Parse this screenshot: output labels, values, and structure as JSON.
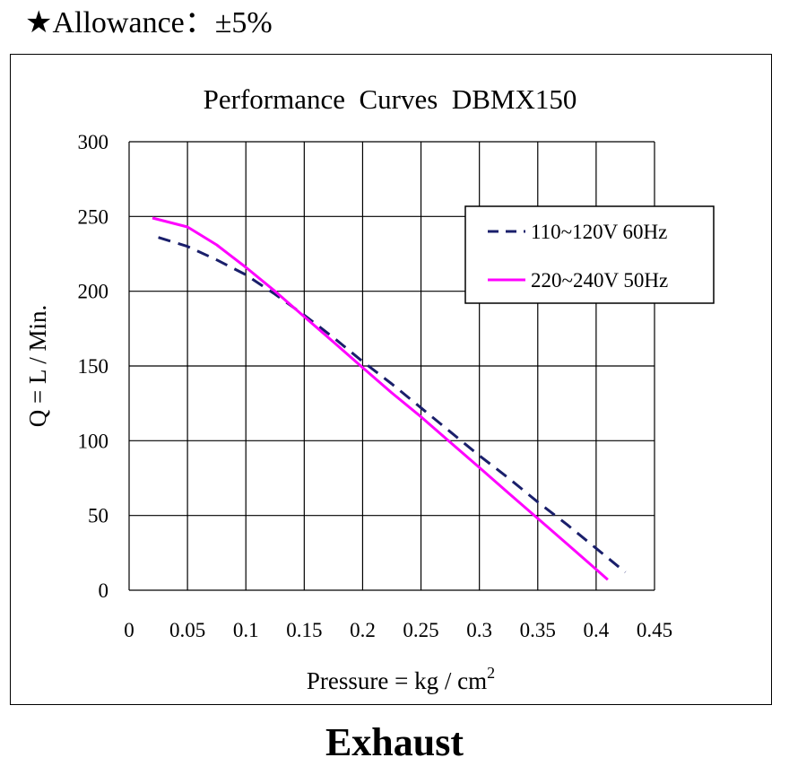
{
  "header": {
    "star": "★",
    "allowance_label": "Allowance：±5%"
  },
  "footer": {
    "title": "Exhaust"
  },
  "colors": {
    "series_60hz": "#1a1f6b",
    "series_50hz": "#ff00ff",
    "grid": "#000000"
  },
  "chart_data": {
    "type": "line",
    "title": "Performance  Curves  DBMX150",
    "xlabel": "Pressure = kg / cm",
    "xlabel_sup": "2",
    "ylabel": "Q = L / Min.",
    "xlim": [
      0,
      0.45
    ],
    "ylim": [
      0,
      300
    ],
    "x_ticks": [
      0,
      0.05,
      0.1,
      0.15,
      0.2,
      0.25,
      0.3,
      0.35,
      0.4,
      0.45
    ],
    "x_tick_labels": [
      "0",
      "0.05",
      "0.1",
      "0.15",
      "0.2",
      "0.25",
      "0.3",
      "0.35",
      "0.4",
      "0.45"
    ],
    "y_ticks": [
      0,
      50,
      100,
      150,
      200,
      250,
      300
    ],
    "y_tick_labels": [
      "0",
      "50",
      "100",
      "150",
      "200",
      "250",
      "300"
    ],
    "grid": true,
    "legend_position": "top-right",
    "series": [
      {
        "name": "110~120V 60Hz",
        "style": "dashed",
        "color": "#1a1f6b",
        "x": [
          0.025,
          0.05,
          0.075,
          0.1,
          0.125,
          0.15,
          0.175,
          0.2,
          0.225,
          0.25,
          0.275,
          0.3,
          0.325,
          0.35,
          0.375,
          0.4,
          0.425
        ],
        "y": [
          236,
          230,
          221,
          211,
          198,
          184,
          169,
          153,
          138,
          122,
          106,
          90,
          75,
          59,
          44,
          28,
          12
        ]
      },
      {
        "name": "220~240V 50Hz",
        "style": "solid",
        "color": "#ff00ff",
        "x": [
          0.02,
          0.05,
          0.075,
          0.1,
          0.125,
          0.15,
          0.175,
          0.2,
          0.225,
          0.25,
          0.275,
          0.3,
          0.325,
          0.35,
          0.375,
          0.4,
          0.41
        ],
        "y": [
          249,
          243,
          231,
          216,
          200,
          183,
          166,
          149,
          132,
          116,
          99,
          82,
          65,
          48,
          31,
          14,
          7
        ]
      }
    ]
  }
}
